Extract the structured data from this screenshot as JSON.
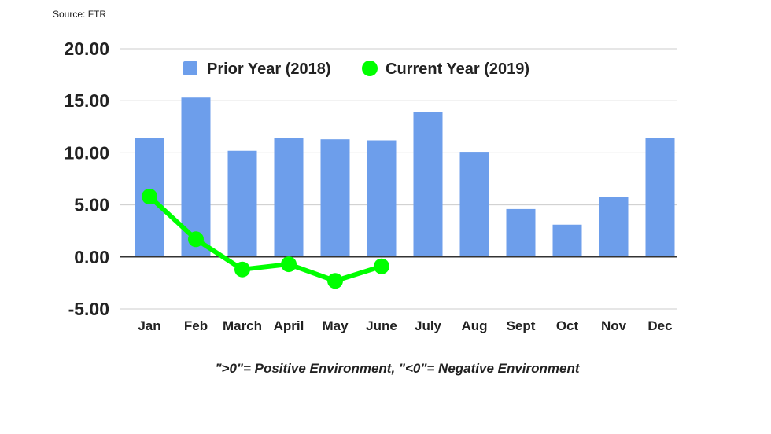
{
  "source": "Source: FTR",
  "chart_data": {
    "type": "bar",
    "categories": [
      "Jan",
      "Feb",
      "March",
      "April",
      "May",
      "June",
      "July",
      "Aug",
      "Sept",
      "Oct",
      "Nov",
      "Dec"
    ],
    "series": [
      {
        "name": "Prior Year (2018)",
        "type": "bar",
        "color": "#6d9eeb",
        "values": [
          11.4,
          15.3,
          10.2,
          11.4,
          11.3,
          11.2,
          13.9,
          10.1,
          4.6,
          3.1,
          5.8,
          11.4
        ]
      },
      {
        "name": "Current Year (2019)",
        "type": "line",
        "color": "#00ff00",
        "values": [
          5.8,
          1.7,
          -1.2,
          -0.7,
          -2.3,
          -0.9,
          null,
          null,
          null,
          null,
          null,
          null
        ]
      }
    ],
    "ylim": [
      -5,
      20
    ],
    "yticks": [
      "20.00",
      "15.00",
      "10.00",
      "5.00",
      "0.00",
      "-5.00"
    ],
    "caption": "\">0\"= Positive Environment, \"<0\"= Negative Environment",
    "grid": true,
    "legend_position": "top"
  }
}
